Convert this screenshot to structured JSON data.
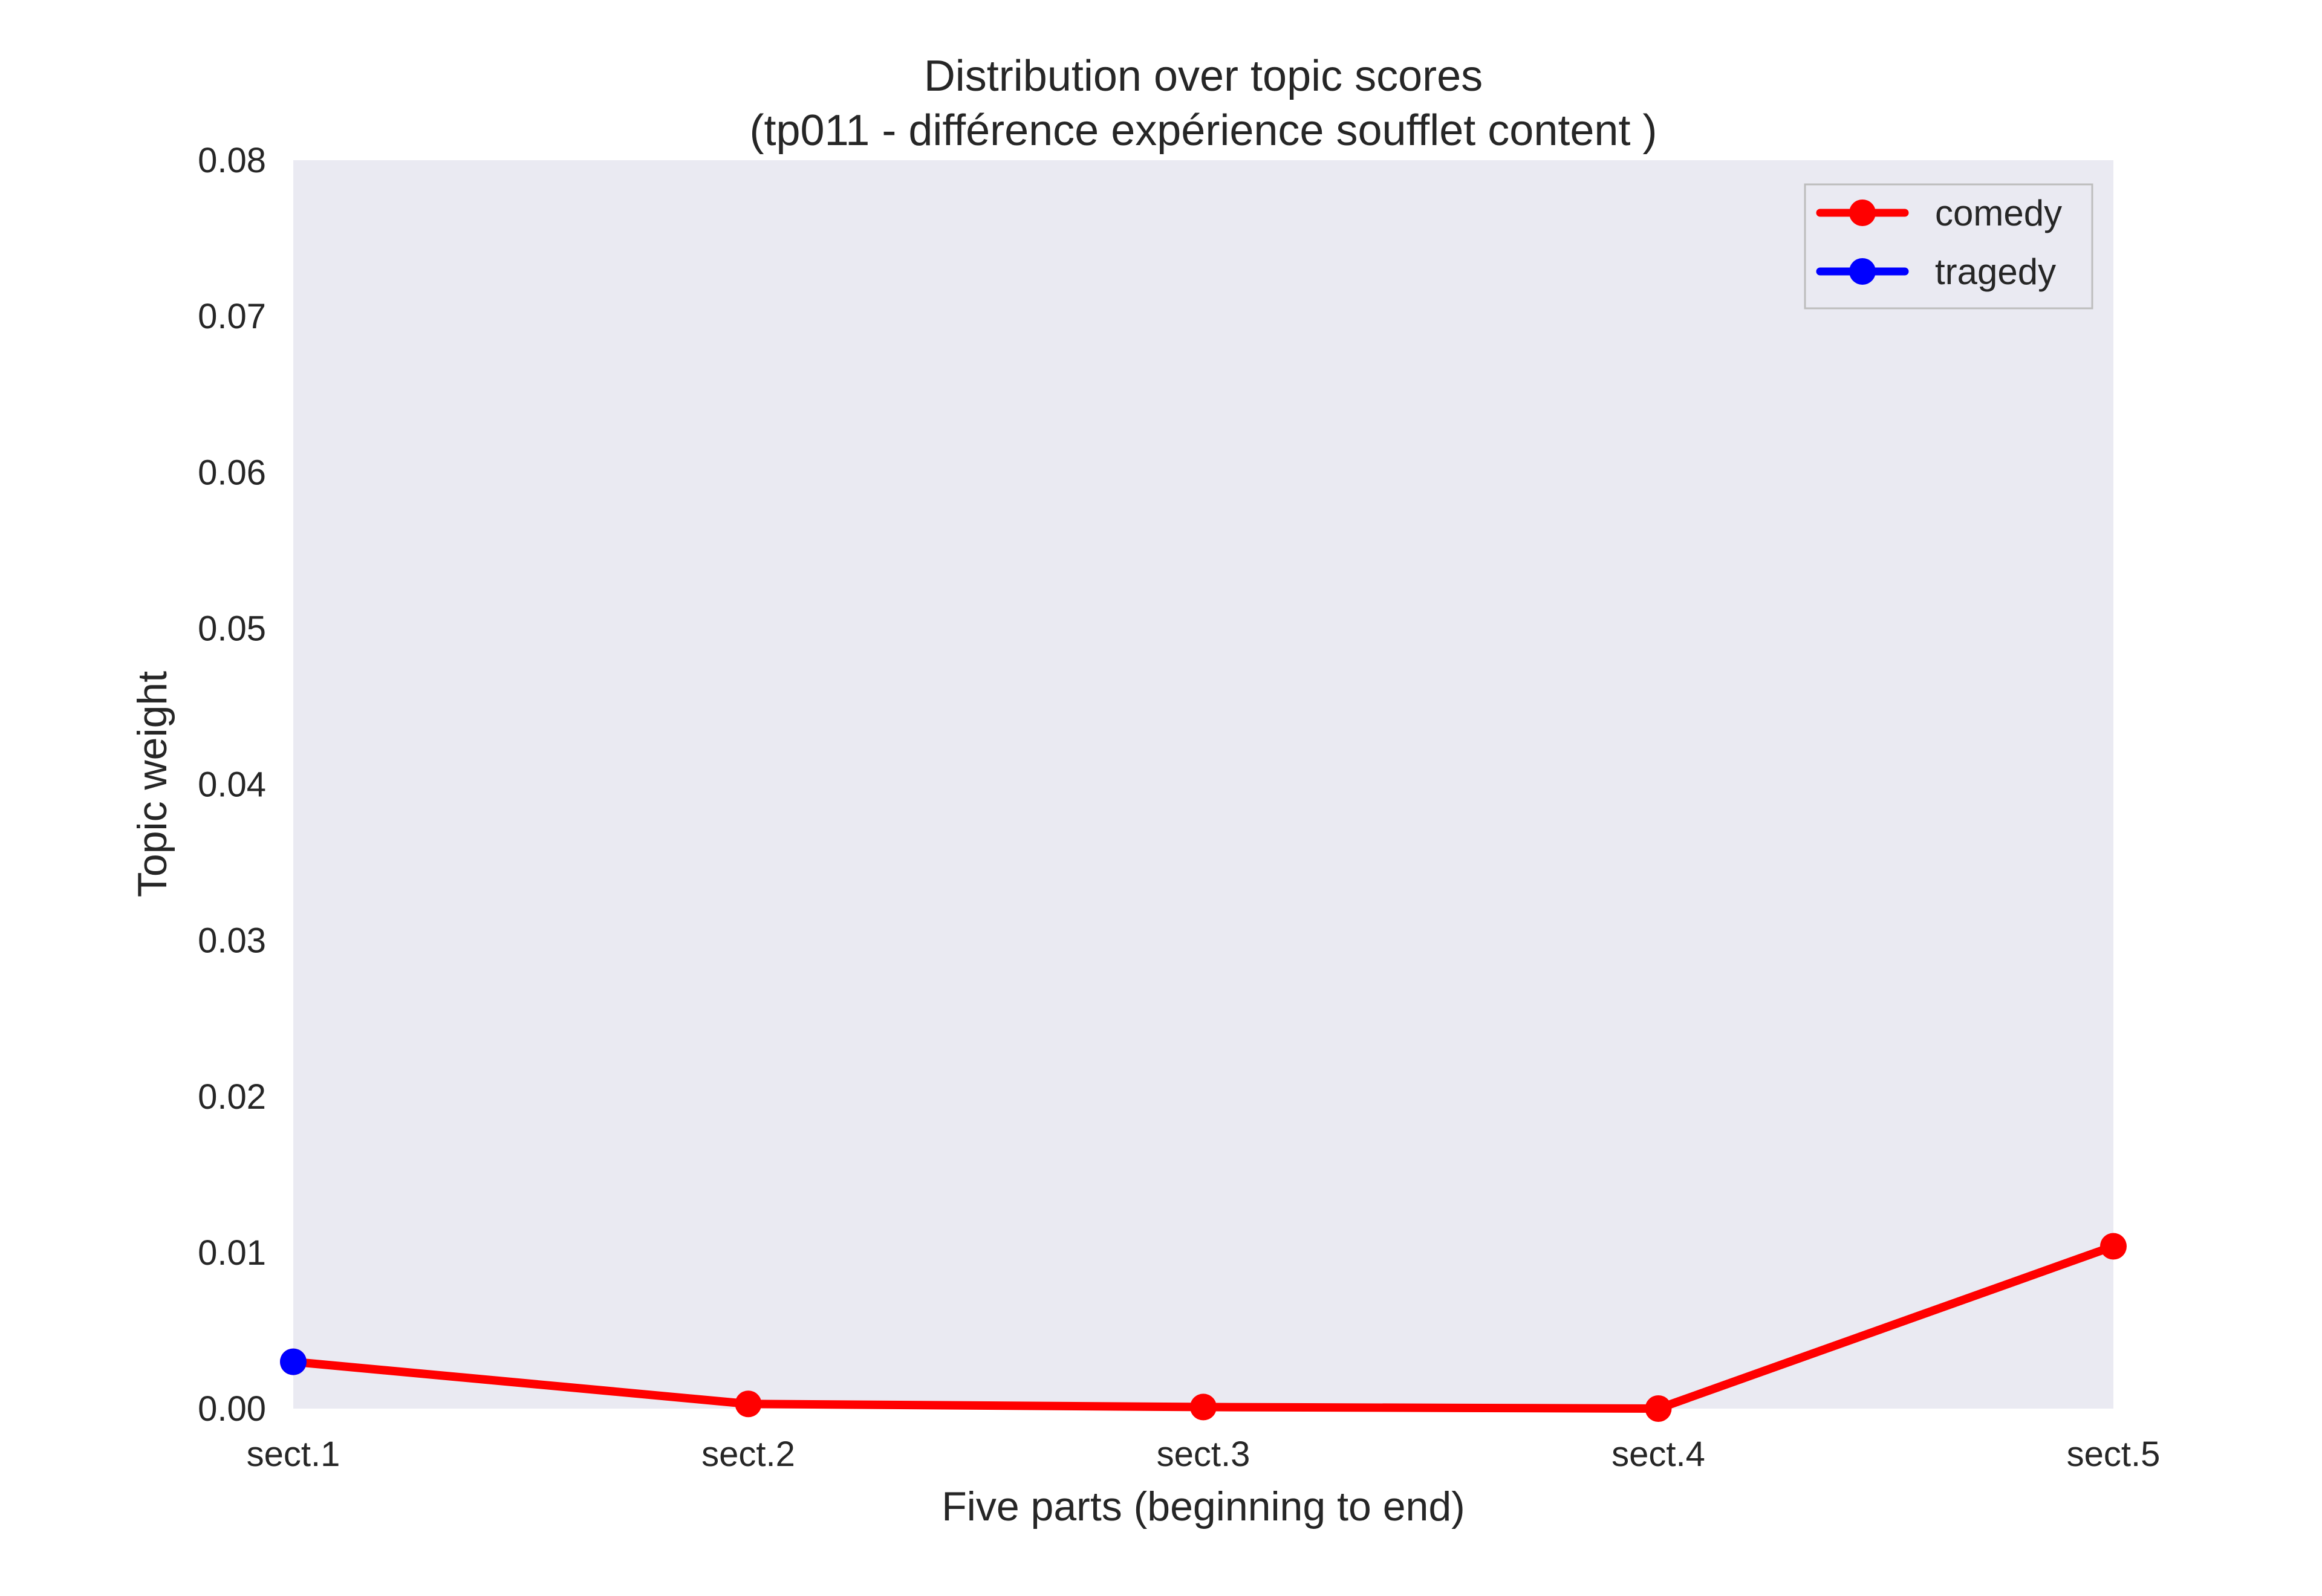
{
  "chart_data": {
    "type": "line",
    "title": "Distribution over topic scores",
    "subtitle": "(tp011 - différence expérience soufflet content )",
    "xlabel": "Five parts (beginning to end)",
    "ylabel": "Topic weight",
    "categories": [
      "sect.1",
      "sect.2",
      "sect.3",
      "sect.4",
      "sect.5"
    ],
    "ylim": [
      0,
      0.08
    ],
    "yticks": [
      "0.00",
      "0.01",
      "0.02",
      "0.03",
      "0.04",
      "0.05",
      "0.06",
      "0.07",
      "0.08"
    ],
    "grid": false,
    "legend_position": "top-right",
    "series": [
      {
        "name": "comedy",
        "color": "#ff0000",
        "values": [
          0.003,
          0.0003,
          0.0001,
          0.0,
          0.0104
        ]
      },
      {
        "name": "tragedy",
        "color": "#0000ff",
        "values": [
          0.003,
          null,
          null,
          null,
          null
        ]
      }
    ]
  }
}
